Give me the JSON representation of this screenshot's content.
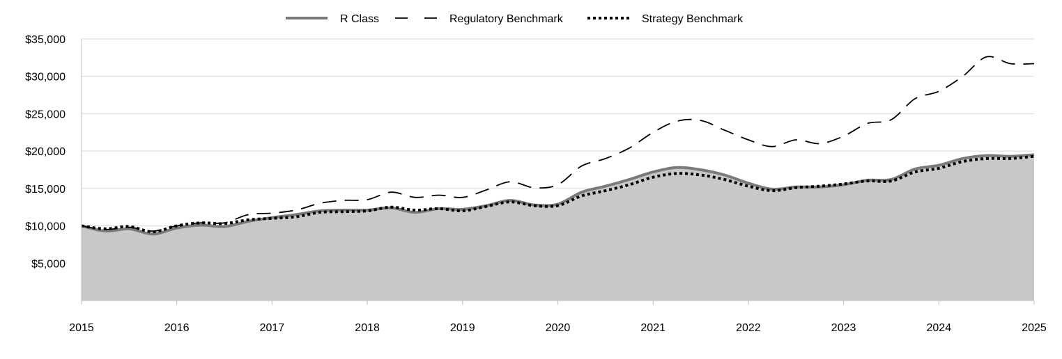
{
  "chart_data": {
    "type": "area",
    "title": "",
    "xlabel": "",
    "ylabel": "",
    "ylim": [
      0,
      35000
    ],
    "xlim": [
      2015,
      2025
    ],
    "y_ticks": [
      {
        "value": 5000,
        "label": "$5,000"
      },
      {
        "value": 10000,
        "label": "$10,000"
      },
      {
        "value": 15000,
        "label": "$15,000"
      },
      {
        "value": 20000,
        "label": "$20,000"
      },
      {
        "value": 25000,
        "label": "$25,000"
      },
      {
        "value": 30000,
        "label": "$30,000"
      },
      {
        "value": 35000,
        "label": "$35,000"
      }
    ],
    "x_ticks": [
      {
        "value": 2015,
        "label": "2015"
      },
      {
        "value": 2016,
        "label": "2016"
      },
      {
        "value": 2017,
        "label": "2017"
      },
      {
        "value": 2018,
        "label": "2018"
      },
      {
        "value": 2019,
        "label": "2019"
      },
      {
        "value": 2020,
        "label": "2020"
      },
      {
        "value": 2021,
        "label": "2021"
      },
      {
        "value": 2022,
        "label": "2022"
      },
      {
        "value": 2023,
        "label": "2023"
      },
      {
        "value": 2024,
        "label": "2024"
      },
      {
        "value": 2025,
        "label": "2025"
      }
    ],
    "grid": true,
    "legend_position": "top-center",
    "series": [
      {
        "name": "R Class",
        "style": "solid-area",
        "color": "#7a7a7a",
        "fill": "#c8c8c8",
        "points": [
          [
            2015.0,
            10000
          ],
          [
            2015.25,
            9300
          ],
          [
            2015.5,
            9600
          ],
          [
            2015.75,
            8900
          ],
          [
            2016.0,
            9700
          ],
          [
            2016.25,
            10100
          ],
          [
            2016.5,
            9900
          ],
          [
            2016.75,
            10600
          ],
          [
            2017.0,
            11100
          ],
          [
            2017.25,
            11500
          ],
          [
            2017.5,
            12000
          ],
          [
            2017.75,
            12100
          ],
          [
            2018.0,
            12100
          ],
          [
            2018.25,
            12400
          ],
          [
            2018.5,
            11800
          ],
          [
            2018.75,
            12300
          ],
          [
            2019.0,
            12200
          ],
          [
            2019.25,
            12700
          ],
          [
            2019.5,
            13400
          ],
          [
            2019.75,
            12800
          ],
          [
            2020.0,
            12900
          ],
          [
            2020.25,
            14500
          ],
          [
            2020.5,
            15300
          ],
          [
            2020.75,
            16200
          ],
          [
            2021.0,
            17200
          ],
          [
            2021.25,
            17800
          ],
          [
            2021.5,
            17500
          ],
          [
            2021.75,
            16800
          ],
          [
            2022.0,
            15700
          ],
          [
            2022.25,
            14900
          ],
          [
            2022.5,
            15200
          ],
          [
            2022.75,
            15200
          ],
          [
            2023.0,
            15500
          ],
          [
            2023.25,
            16100
          ],
          [
            2023.5,
            16200
          ],
          [
            2023.75,
            17600
          ],
          [
            2024.0,
            18100
          ],
          [
            2024.25,
            19000
          ],
          [
            2024.5,
            19400
          ],
          [
            2024.75,
            19300
          ],
          [
            2025.0,
            19500
          ]
        ]
      },
      {
        "name": "Regulatory Benchmark",
        "style": "dashed",
        "color": "#000000",
        "points": [
          [
            2015.0,
            10000
          ],
          [
            2015.25,
            9500
          ],
          [
            2015.5,
            9800
          ],
          [
            2015.75,
            9300
          ],
          [
            2016.0,
            10000
          ],
          [
            2016.25,
            10400
          ],
          [
            2016.5,
            10400
          ],
          [
            2016.75,
            11500
          ],
          [
            2017.0,
            11700
          ],
          [
            2017.25,
            12100
          ],
          [
            2017.5,
            13000
          ],
          [
            2017.75,
            13400
          ],
          [
            2018.0,
            13500
          ],
          [
            2018.25,
            14500
          ],
          [
            2018.5,
            13800
          ],
          [
            2018.75,
            14100
          ],
          [
            2019.0,
            13800
          ],
          [
            2019.25,
            14800
          ],
          [
            2019.5,
            15900
          ],
          [
            2019.75,
            15100
          ],
          [
            2020.0,
            15500
          ],
          [
            2020.25,
            18000
          ],
          [
            2020.5,
            19000
          ],
          [
            2020.75,
            20400
          ],
          [
            2021.0,
            22500
          ],
          [
            2021.25,
            24000
          ],
          [
            2021.5,
            24100
          ],
          [
            2021.75,
            22800
          ],
          [
            2022.0,
            21500
          ],
          [
            2022.25,
            20600
          ],
          [
            2022.5,
            21500
          ],
          [
            2022.75,
            21000
          ],
          [
            2023.0,
            22000
          ],
          [
            2023.25,
            23700
          ],
          [
            2023.5,
            24200
          ],
          [
            2023.75,
            27000
          ],
          [
            2024.0,
            28000
          ],
          [
            2024.25,
            30000
          ],
          [
            2024.5,
            32600
          ],
          [
            2024.75,
            31700
          ],
          [
            2025.0,
            31700
          ]
        ]
      },
      {
        "name": "Strategy Benchmark",
        "style": "dotted",
        "color": "#000000",
        "points": [
          [
            2015.0,
            10000
          ],
          [
            2015.25,
            9600
          ],
          [
            2015.5,
            9900
          ],
          [
            2015.75,
            9200
          ],
          [
            2016.0,
            10000
          ],
          [
            2016.25,
            10400
          ],
          [
            2016.5,
            10300
          ],
          [
            2016.75,
            10800
          ],
          [
            2017.0,
            11000
          ],
          [
            2017.25,
            11200
          ],
          [
            2017.5,
            11800
          ],
          [
            2017.75,
            11900
          ],
          [
            2018.0,
            12000
          ],
          [
            2018.25,
            12500
          ],
          [
            2018.5,
            12100
          ],
          [
            2018.75,
            12300
          ],
          [
            2019.0,
            12000
          ],
          [
            2019.25,
            12600
          ],
          [
            2019.5,
            13200
          ],
          [
            2019.75,
            12700
          ],
          [
            2020.0,
            12700
          ],
          [
            2020.25,
            14000
          ],
          [
            2020.5,
            14700
          ],
          [
            2020.75,
            15500
          ],
          [
            2021.0,
            16500
          ],
          [
            2021.25,
            17000
          ],
          [
            2021.5,
            16800
          ],
          [
            2021.75,
            16200
          ],
          [
            2022.0,
            15300
          ],
          [
            2022.25,
            14700
          ],
          [
            2022.5,
            15100
          ],
          [
            2022.75,
            15300
          ],
          [
            2023.0,
            15600
          ],
          [
            2023.25,
            16000
          ],
          [
            2023.5,
            16000
          ],
          [
            2023.75,
            17200
          ],
          [
            2024.0,
            17700
          ],
          [
            2024.25,
            18600
          ],
          [
            2024.5,
            19000
          ],
          [
            2024.75,
            19000
          ],
          [
            2025.0,
            19300
          ]
        ]
      }
    ]
  }
}
